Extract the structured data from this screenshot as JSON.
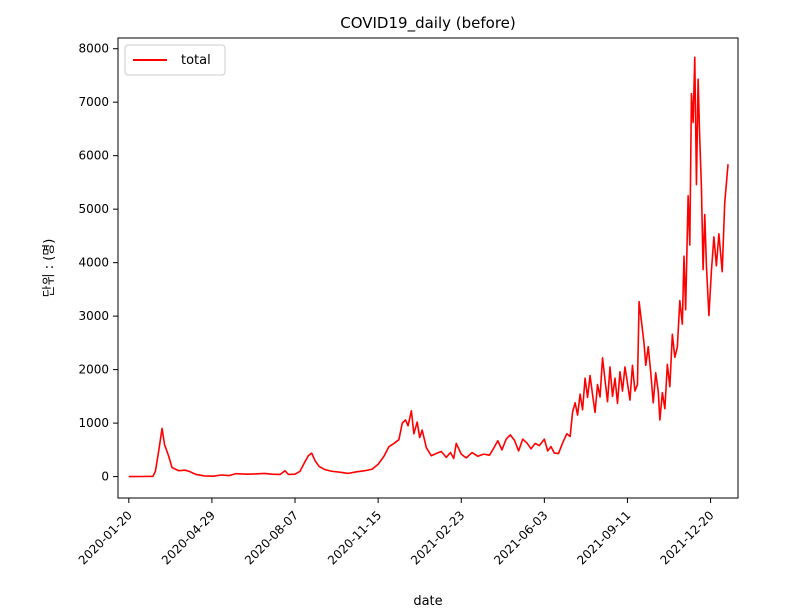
{
  "chart_data": {
    "type": "line",
    "title": "COVID19_daily (before)",
    "xlabel": "date",
    "ylabel": "단위 : (명)",
    "x_start": "2020-01-20",
    "x_end": "2022-01-10",
    "xlim": [
      "2020-01-07",
      "2022-01-22"
    ],
    "ylim": [
      -400,
      8200
    ],
    "x_ticks": [
      "2020-01-20",
      "2020-04-29",
      "2020-08-07",
      "2020-11-15",
      "2021-02-23",
      "2021-06-03",
      "2021-09-11",
      "2021-12-20"
    ],
    "y_ticks": [
      0,
      1000,
      2000,
      3000,
      4000,
      5000,
      6000,
      7000,
      8000
    ],
    "grid": false,
    "legend_position": "upper left",
    "series": [
      {
        "name": "total",
        "color": "#ff0000",
        "points": [
          [
            "2020-01-20",
            1
          ],
          [
            "2020-02-05",
            2
          ],
          [
            "2020-02-18",
            5
          ],
          [
            "2020-02-21",
            100
          ],
          [
            "2020-02-25",
            480
          ],
          [
            "2020-02-29",
            900
          ],
          [
            "2020-03-03",
            600
          ],
          [
            "2020-03-08",
            380
          ],
          [
            "2020-03-12",
            170
          ],
          [
            "2020-03-20",
            110
          ],
          [
            "2020-03-28",
            120
          ],
          [
            "2020-04-03",
            90
          ],
          [
            "2020-04-10",
            40
          ],
          [
            "2020-04-20",
            12
          ],
          [
            "2020-05-01",
            8
          ],
          [
            "2020-05-10",
            30
          ],
          [
            "2020-05-20",
            20
          ],
          [
            "2020-05-28",
            55
          ],
          [
            "2020-06-10",
            45
          ],
          [
            "2020-06-20",
            50
          ],
          [
            "2020-07-01",
            60
          ],
          [
            "2020-07-10",
            45
          ],
          [
            "2020-07-20",
            40
          ],
          [
            "2020-07-26",
            110
          ],
          [
            "2020-07-30",
            40
          ],
          [
            "2020-08-07",
            45
          ],
          [
            "2020-08-13",
            100
          ],
          [
            "2020-08-18",
            250
          ],
          [
            "2020-08-23",
            390
          ],
          [
            "2020-08-27",
            440
          ],
          [
            "2020-08-31",
            300
          ],
          [
            "2020-09-05",
            190
          ],
          [
            "2020-09-12",
            130
          ],
          [
            "2020-09-20",
            100
          ],
          [
            "2020-10-01",
            80
          ],
          [
            "2020-10-10",
            60
          ],
          [
            "2020-10-20",
            90
          ],
          [
            "2020-10-30",
            110
          ],
          [
            "2020-11-08",
            140
          ],
          [
            "2020-11-15",
            230
          ],
          [
            "2020-11-22",
            380
          ],
          [
            "2020-11-28",
            560
          ],
          [
            "2020-12-04",
            620
          ],
          [
            "2020-12-10",
            690
          ],
          [
            "2020-12-14",
            1000
          ],
          [
            "2020-12-18",
            1060
          ],
          [
            "2020-12-21",
            950
          ],
          [
            "2020-12-25",
            1230
          ],
          [
            "2020-12-28",
            800
          ],
          [
            "2021-01-01",
            1020
          ],
          [
            "2021-01-04",
            730
          ],
          [
            "2021-01-07",
            870
          ],
          [
            "2021-01-12",
            540
          ],
          [
            "2021-01-18",
            390
          ],
          [
            "2021-01-25",
            440
          ],
          [
            "2021-01-30",
            470
          ],
          [
            "2021-02-05",
            360
          ],
          [
            "2021-02-10",
            450
          ],
          [
            "2021-02-14",
            340
          ],
          [
            "2021-02-17",
            620
          ],
          [
            "2021-02-23",
            420
          ],
          [
            "2021-03-01",
            350
          ],
          [
            "2021-03-08",
            450
          ],
          [
            "2021-03-15",
            380
          ],
          [
            "2021-03-22",
            420
          ],
          [
            "2021-03-29",
            400
          ],
          [
            "2021-04-03",
            530
          ],
          [
            "2021-04-08",
            670
          ],
          [
            "2021-04-13",
            500
          ],
          [
            "2021-04-18",
            700
          ],
          [
            "2021-04-23",
            780
          ],
          [
            "2021-04-28",
            680
          ],
          [
            "2021-05-03",
            480
          ],
          [
            "2021-05-08",
            700
          ],
          [
            "2021-05-13",
            630
          ],
          [
            "2021-05-18",
            520
          ],
          [
            "2021-05-23",
            620
          ],
          [
            "2021-05-28",
            580
          ],
          [
            "2021-06-03",
            700
          ],
          [
            "2021-06-07",
            480
          ],
          [
            "2021-06-11",
            560
          ],
          [
            "2021-06-15",
            440
          ],
          [
            "2021-06-20",
            430
          ],
          [
            "2021-06-25",
            630
          ],
          [
            "2021-06-30",
            800
          ],
          [
            "2021-07-04",
            750
          ],
          [
            "2021-07-07",
            1210
          ],
          [
            "2021-07-10",
            1380
          ],
          [
            "2021-07-13",
            1150
          ],
          [
            "2021-07-16",
            1540
          ],
          [
            "2021-07-19",
            1250
          ],
          [
            "2021-07-22",
            1840
          ],
          [
            "2021-07-25",
            1480
          ],
          [
            "2021-07-28",
            1890
          ],
          [
            "2021-07-31",
            1530
          ],
          [
            "2021-08-03",
            1200
          ],
          [
            "2021-08-06",
            1720
          ],
          [
            "2021-08-09",
            1490
          ],
          [
            "2021-08-12",
            2220
          ],
          [
            "2021-08-15",
            1810
          ],
          [
            "2021-08-18",
            1400
          ],
          [
            "2021-08-21",
            2050
          ],
          [
            "2021-08-24",
            1500
          ],
          [
            "2021-08-27",
            1840
          ],
          [
            "2021-08-30",
            1370
          ],
          [
            "2021-09-02",
            1960
          ],
          [
            "2021-09-05",
            1600
          ],
          [
            "2021-09-08",
            2050
          ],
          [
            "2021-09-11",
            1750
          ],
          [
            "2021-09-14",
            1430
          ],
          [
            "2021-09-17",
            2080
          ],
          [
            "2021-09-20",
            1600
          ],
          [
            "2021-09-23",
            1720
          ],
          [
            "2021-09-25",
            3270
          ],
          [
            "2021-09-28",
            2880
          ],
          [
            "2021-10-01",
            2480
          ],
          [
            "2021-10-03",
            2080
          ],
          [
            "2021-10-06",
            2430
          ],
          [
            "2021-10-09",
            1950
          ],
          [
            "2021-10-12",
            1380
          ],
          [
            "2021-10-15",
            1940
          ],
          [
            "2021-10-18",
            1600
          ],
          [
            "2021-10-20",
            1060
          ],
          [
            "2021-10-23",
            1570
          ],
          [
            "2021-10-26",
            1270
          ],
          [
            "2021-10-29",
            2100
          ],
          [
            "2021-11-01",
            1680
          ],
          [
            "2021-11-04",
            2660
          ],
          [
            "2021-11-07",
            2230
          ],
          [
            "2021-11-10",
            2420
          ],
          [
            "2021-11-13",
            3290
          ],
          [
            "2021-11-16",
            2850
          ],
          [
            "2021-11-18",
            4120
          ],
          [
            "2021-11-20",
            3120
          ],
          [
            "2021-11-23",
            5250
          ],
          [
            "2021-11-25",
            4330
          ],
          [
            "2021-11-27",
            7160
          ],
          [
            "2021-11-29",
            6620
          ],
          [
            "2021-12-01",
            7840
          ],
          [
            "2021-12-03",
            5460
          ],
          [
            "2021-12-05",
            7430
          ],
          [
            "2021-12-07",
            6300
          ],
          [
            "2021-12-09",
            5410
          ],
          [
            "2021-12-11",
            3870
          ],
          [
            "2021-12-13",
            4900
          ],
          [
            "2021-12-15",
            3950
          ],
          [
            "2021-12-18",
            3010
          ],
          [
            "2021-12-21",
            3840
          ],
          [
            "2021-12-24",
            4480
          ],
          [
            "2021-12-27",
            3940
          ],
          [
            "2021-12-30",
            4540
          ],
          [
            "2022-01-03",
            3830
          ],
          [
            "2022-01-06",
            5110
          ],
          [
            "2022-01-10",
            5840
          ]
        ]
      }
    ]
  }
}
